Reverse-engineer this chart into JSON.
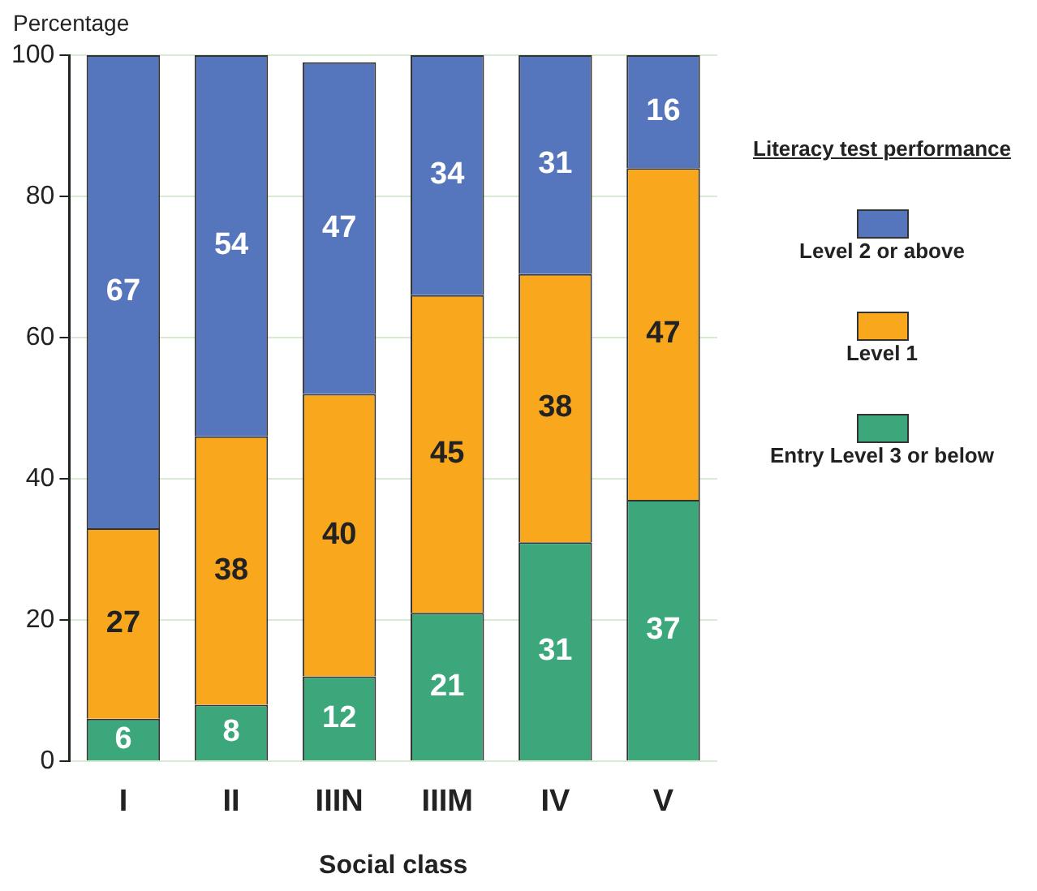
{
  "chart_data": {
    "type": "bar",
    "stacked": true,
    "xlabel": "Social class",
    "ylabel": "Percentage",
    "legend_title": "Literacy test performance",
    "categories": [
      "I",
      "II",
      "IIIN",
      "IIIM",
      "IV",
      "V"
    ],
    "series": [
      {
        "name": "Entry Level 3 or below",
        "color": "#3ca77b",
        "values": [
          6,
          8,
          12,
          21,
          31,
          37
        ]
      },
      {
        "name": "Level 1",
        "color": "#f9a71c",
        "values": [
          27,
          38,
          40,
          45,
          38,
          47
        ]
      },
      {
        "name": "Level 2 or above",
        "color": "#5575bd",
        "values": [
          67,
          54,
          47,
          34,
          31,
          16
        ]
      }
    ],
    "ylim": [
      0,
      100
    ],
    "yticks": [
      0,
      20,
      40,
      60,
      80,
      100
    ],
    "grid": "y",
    "legend": "right",
    "data_labels": true
  }
}
